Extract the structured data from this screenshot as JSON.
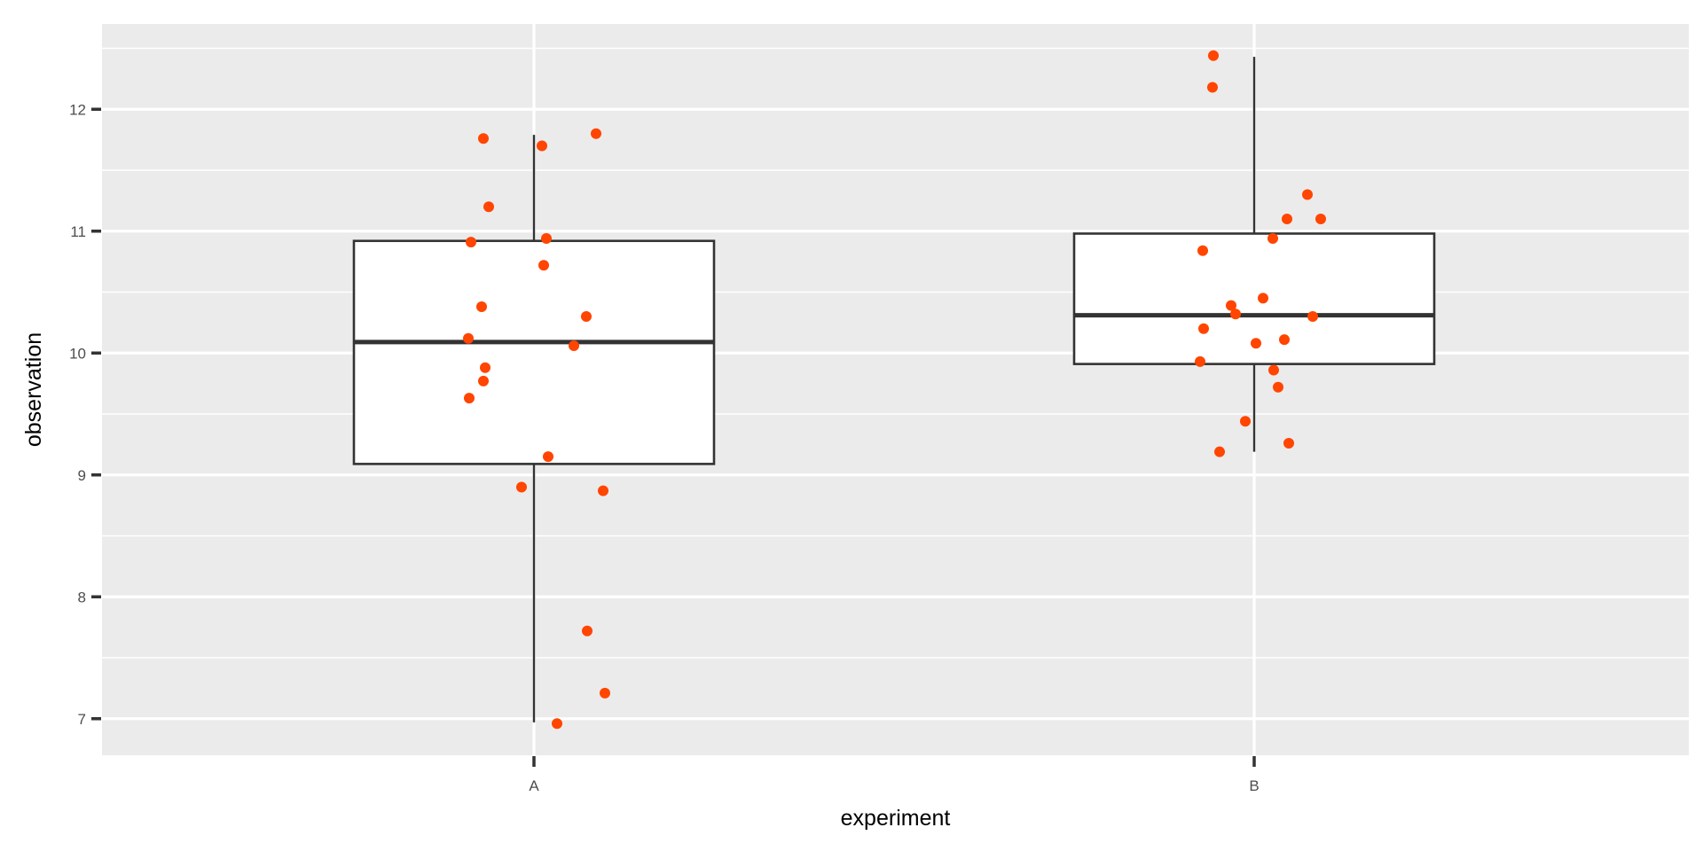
{
  "chart_data": {
    "type": "boxplot",
    "xlabel": "experiment",
    "ylabel": "observation",
    "categories": [
      "A",
      "B"
    ],
    "ylim": [
      6.7,
      12.7
    ],
    "y_ticks": [
      7,
      8,
      9,
      10,
      11,
      12
    ],
    "grid": true,
    "boxes": [
      {
        "name": "A",
        "whisker_low": 6.97,
        "q1": 9.09,
        "median": 10.09,
        "q3": 10.92,
        "whisker_high": 11.79
      },
      {
        "name": "B",
        "whisker_low": 9.19,
        "q1": 9.91,
        "median": 10.31,
        "q3": 10.98,
        "whisker_high": 12.43
      }
    ],
    "points": [
      {
        "category": "A",
        "values": [
          11.76,
          11.7,
          11.8,
          11.2,
          10.91,
          10.94,
          10.72,
          10.38,
          10.3,
          10.12,
          10.06,
          9.88,
          9.77,
          9.63,
          9.15,
          8.9,
          8.87,
          7.72,
          7.21,
          6.96
        ]
      },
      {
        "category": "B",
        "values": [
          12.44,
          12.18,
          11.3,
          11.1,
          11.1,
          10.94,
          10.84,
          10.45,
          10.39,
          10.32,
          10.3,
          10.2,
          10.11,
          10.08,
          9.93,
          9.86,
          9.72,
          9.44,
          9.26,
          9.19
        ]
      }
    ],
    "point_color": "#ff4500",
    "panel_color": "#ebebeb",
    "grid_color": "#ffffff",
    "box_fill": "#ffffff",
    "box_stroke": "#333333"
  }
}
